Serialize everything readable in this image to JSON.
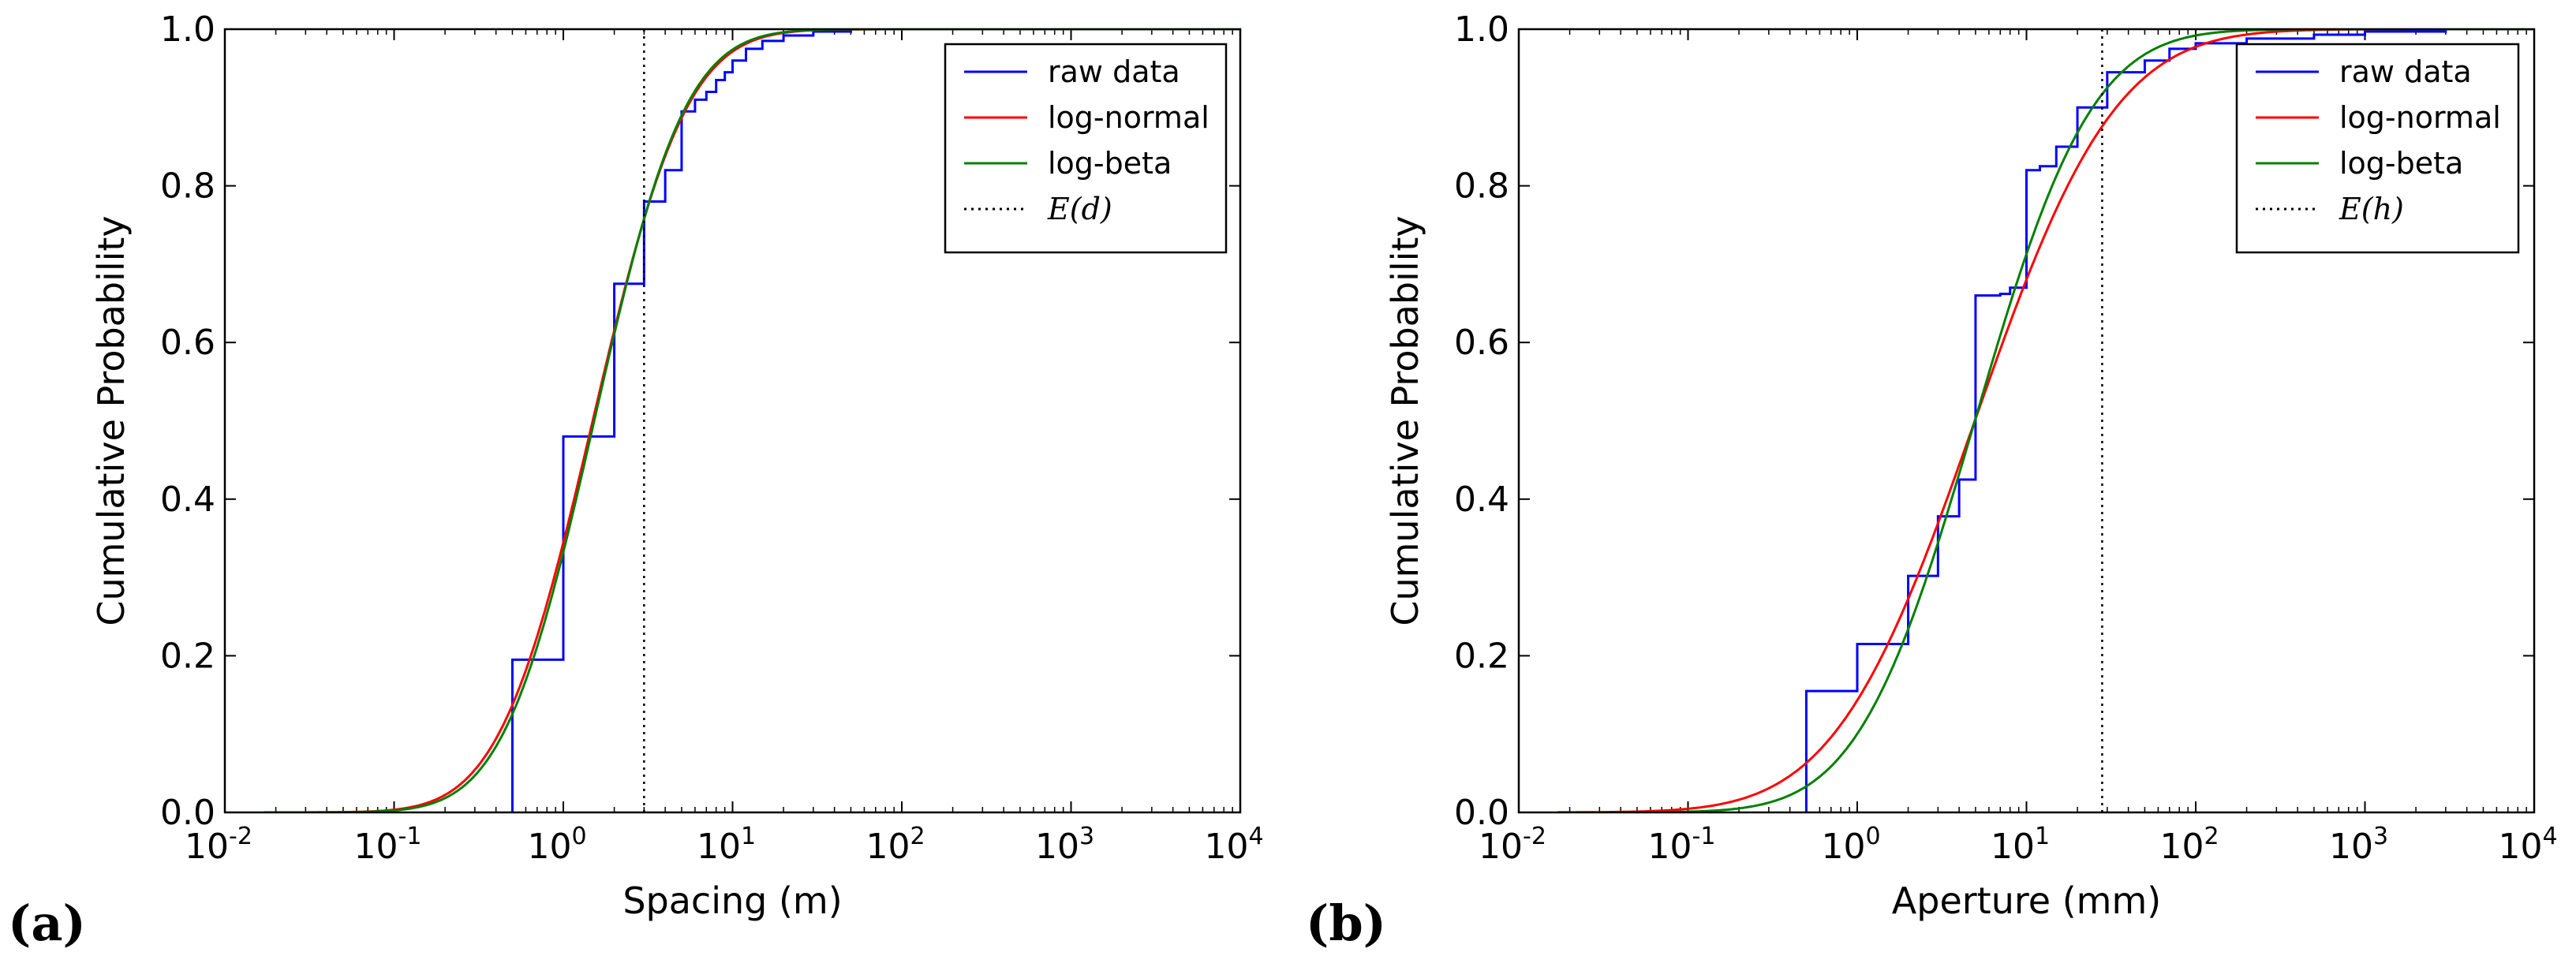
{
  "chart_data": [
    {
      "type": "line",
      "panel": "(a)",
      "xscale": "log",
      "xlabel": "Spacing (m)",
      "ylabel": "Cumulative Probability",
      "xlim": [
        0.01,
        10000
      ],
      "ylim": [
        0,
        1.0
      ],
      "x_ticks": [
        {
          "base": "10",
          "exp": "-2"
        },
        {
          "base": "10",
          "exp": "-1"
        },
        {
          "base": "10",
          "exp": "0"
        },
        {
          "base": "10",
          "exp": "1"
        },
        {
          "base": "10",
          "exp": "2"
        },
        {
          "base": "10",
          "exp": "3"
        },
        {
          "base": "10",
          "exp": "4"
        }
      ],
      "y_ticks": [
        "0.0",
        "0.2",
        "0.4",
        "0.6",
        "0.8",
        "1.0"
      ],
      "legend_position": "top-right",
      "legend": [
        {
          "label": "raw data",
          "color": "#0000ff",
          "style": "solid"
        },
        {
          "label": "log-normal",
          "color": "#ff0000",
          "style": "solid"
        },
        {
          "label": "log-beta",
          "color": "#008000",
          "style": "solid"
        },
        {
          "label": "E(d)",
          "color": "#000000",
          "style": "dotted"
        }
      ],
      "series": [
        {
          "name": "raw data",
          "kind": "step",
          "color": "#0000ff",
          "x": [
            0.5,
            1,
            2,
            3,
            4,
            5,
            6,
            7,
            8,
            9,
            10,
            12,
            15,
            20,
            30,
            50
          ],
          "y": [
            0.195,
            0.48,
            0.675,
            0.78,
            0.82,
            0.895,
            0.91,
            0.92,
            0.935,
            0.945,
            0.96,
            0.975,
            0.985,
            0.992,
            0.997,
            1.0
          ]
        },
        {
          "name": "log-normal",
          "kind": "lognormal-cdf",
          "color": "#ff0000",
          "mu": 0.4,
          "sigma": 1.0
        },
        {
          "name": "log-beta",
          "kind": "lognormal-cdf",
          "color": "#008000",
          "mu": 0.42,
          "sigma": 0.97
        }
      ],
      "expected_value_line": {
        "label": "E(d)",
        "x": 3.0
      }
    },
    {
      "type": "line",
      "panel": "(b)",
      "xscale": "log",
      "xlabel": "Aperture (mm)",
      "ylabel": "Cumulative Probability",
      "xlim": [
        0.01,
        10000
      ],
      "ylim": [
        0,
        1.0
      ],
      "x_ticks": [
        {
          "base": "10",
          "exp": "-2"
        },
        {
          "base": "10",
          "exp": "-1"
        },
        {
          "base": "10",
          "exp": "0"
        },
        {
          "base": "10",
          "exp": "1"
        },
        {
          "base": "10",
          "exp": "2"
        },
        {
          "base": "10",
          "exp": "3"
        },
        {
          "base": "10",
          "exp": "4"
        }
      ],
      "y_ticks": [
        "0.0",
        "0.2",
        "0.4",
        "0.6",
        "0.8",
        "1.0"
      ],
      "legend_position": "top-right",
      "legend": [
        {
          "label": "raw data",
          "color": "#0000ff",
          "style": "solid"
        },
        {
          "label": "log-normal",
          "color": "#ff0000",
          "style": "solid"
        },
        {
          "label": "log-beta",
          "color": "#008000",
          "style": "solid"
        },
        {
          "label": "E(h)",
          "color": "#000000",
          "style": "dotted"
        }
      ],
      "series": [
        {
          "name": "raw data",
          "kind": "step",
          "color": "#0000ff",
          "x": [
            0.5,
            1,
            2,
            3,
            4,
            5,
            7,
            8,
            10,
            12,
            15,
            20,
            30,
            50,
            70,
            100,
            200,
            500,
            1000,
            3000
          ],
          "y": [
            0.155,
            0.215,
            0.302,
            0.378,
            0.425,
            0.66,
            0.662,
            0.67,
            0.82,
            0.825,
            0.85,
            0.9,
            0.945,
            0.96,
            0.975,
            0.982,
            0.988,
            0.993,
            0.997,
            1.0
          ]
        },
        {
          "name": "log-normal",
          "kind": "lognormal-cdf",
          "color": "#ff0000",
          "mu": 1.6,
          "sigma": 1.5
        },
        {
          "name": "log-beta",
          "kind": "lognormal-cdf",
          "color": "#008000",
          "mu": 1.6,
          "sigma": 1.25
        }
      ],
      "expected_value_line": {
        "label": "E(h)",
        "x": 28
      }
    }
  ]
}
